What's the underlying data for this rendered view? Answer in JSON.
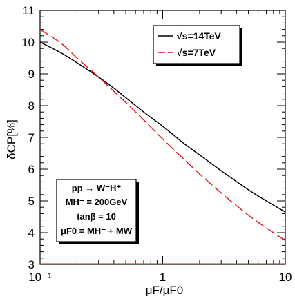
{
  "chart_data": {
    "type": "line",
    "xlabel": "μF/μF0",
    "ylabel": "δCP[%]",
    "xscale": "log",
    "xlim": [
      0.1,
      10
    ],
    "ylim": [
      3,
      11
    ],
    "grid": false,
    "legend_position": "top-right",
    "x_ticks": [
      {
        "value": 0.1,
        "label": "10⁻¹"
      },
      {
        "value": 1,
        "label": "1"
      },
      {
        "value": 10,
        "label": "10"
      }
    ],
    "y_ticks": [
      3,
      4,
      5,
      6,
      7,
      8,
      9,
      10,
      11
    ],
    "series": [
      {
        "name": "√s=14TeV",
        "color": "#000000",
        "dash": "solid",
        "x": [
          0.1,
          0.15,
          0.2,
          0.3,
          0.4,
          0.5,
          0.7,
          1.0,
          1.5,
          2.0,
          3.0,
          5.0,
          7.0,
          10.0
        ],
        "y": [
          10.0,
          9.65,
          9.35,
          8.9,
          8.55,
          8.25,
          7.8,
          7.35,
          6.8,
          6.45,
          5.95,
          5.35,
          5.0,
          4.65
        ]
      },
      {
        "name": "√s=7TeV",
        "color": "#e8191e",
        "dash": "dashed",
        "x": [
          0.1,
          0.15,
          0.2,
          0.3,
          0.4,
          0.5,
          0.7,
          1.0,
          1.5,
          2.0,
          3.0,
          5.0,
          7.0,
          10.0
        ],
        "y": [
          10.4,
          9.95,
          9.5,
          8.9,
          8.45,
          8.1,
          7.55,
          6.95,
          6.3,
          5.85,
          5.25,
          4.55,
          4.15,
          3.75
        ]
      }
    ],
    "annotation": {
      "lines": [
        "pp → W⁻H⁺",
        "MH⁻ = 200GeV",
        "tanβ = 10",
        "μF0 = MH⁻ + MW"
      ]
    }
  }
}
